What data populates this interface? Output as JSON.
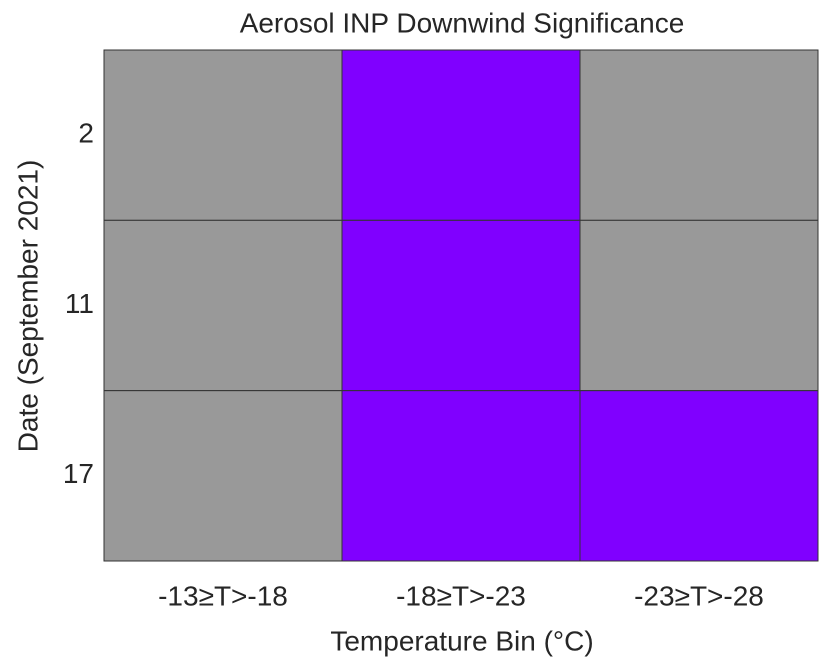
{
  "chart_data": {
    "type": "heatmap",
    "title": "Aerosol INP Downwind Significance",
    "x_label": "Temperature Bin (°C)",
    "y_label": "Date (September 2021)",
    "x_categories": [
      "-13≥T>-18",
      "-18≥T>-23",
      "-23≥T>-28"
    ],
    "y_categories": [
      "2",
      "11",
      "17"
    ],
    "values": [
      [
        0,
        1,
        0
      ],
      [
        0,
        1,
        0
      ],
      [
        0,
        1,
        1
      ]
    ],
    "colors": [
      "#999999",
      "#8000ff"
    ]
  }
}
